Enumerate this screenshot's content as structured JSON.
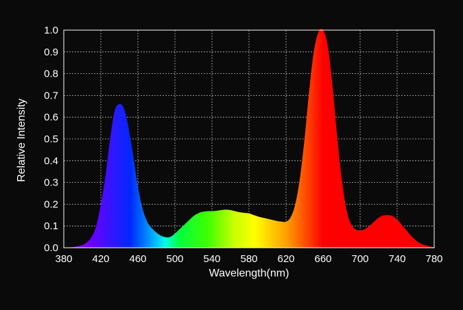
{
  "chart_data": {
    "type": "area",
    "title": "",
    "xlabel": "Wavelength(nm)",
    "ylabel": "Relative Intensity",
    "xlim": [
      380,
      780
    ],
    "ylim": [
      0.0,
      1.0
    ],
    "grid": true,
    "x_ticks": [
      "380",
      "420",
      "460",
      "500",
      "540",
      "580",
      "620",
      "660",
      "700",
      "740",
      "780"
    ],
    "y_ticks": [
      "0.0",
      "0.1",
      "0.2",
      "0.3",
      "0.4",
      "0.5",
      "0.6",
      "0.7",
      "0.8",
      "0.9",
      "1.0"
    ],
    "series": [
      {
        "x": [
          380,
          390,
          400,
          405,
          410,
          415,
          420,
          425,
          430,
          435,
          440,
          445,
          450,
          455,
          460,
          465,
          470,
          475,
          480,
          485,
          490,
          495,
          500,
          505,
          510,
          515,
          520,
          525,
          530,
          535,
          540,
          545,
          550,
          555,
          560,
          565,
          570,
          575,
          580,
          585,
          590,
          595,
          600,
          605,
          610,
          615,
          620,
          625,
          630,
          635,
          640,
          645,
          650,
          655,
          660,
          665,
          670,
          675,
          680,
          685,
          690,
          695,
          700,
          705,
          710,
          715,
          720,
          725,
          730,
          735,
          740,
          745,
          750,
          755,
          760,
          765,
          770,
          775,
          780
        ],
        "values": [
          0.0,
          0.003,
          0.012,
          0.025,
          0.05,
          0.1,
          0.2,
          0.33,
          0.5,
          0.63,
          0.66,
          0.64,
          0.55,
          0.42,
          0.28,
          0.18,
          0.12,
          0.09,
          0.07,
          0.055,
          0.048,
          0.05,
          0.065,
          0.085,
          0.105,
          0.125,
          0.145,
          0.158,
          0.165,
          0.168,
          0.168,
          0.17,
          0.173,
          0.175,
          0.173,
          0.168,
          0.163,
          0.16,
          0.158,
          0.15,
          0.143,
          0.138,
          0.133,
          0.128,
          0.123,
          0.12,
          0.12,
          0.14,
          0.2,
          0.32,
          0.5,
          0.72,
          0.9,
          0.99,
          1.0,
          0.93,
          0.75,
          0.52,
          0.32,
          0.18,
          0.11,
          0.085,
          0.08,
          0.085,
          0.1,
          0.12,
          0.138,
          0.148,
          0.15,
          0.145,
          0.13,
          0.105,
          0.08,
          0.055,
          0.035,
          0.02,
          0.012,
          0.006,
          0.003
        ]
      }
    ]
  }
}
